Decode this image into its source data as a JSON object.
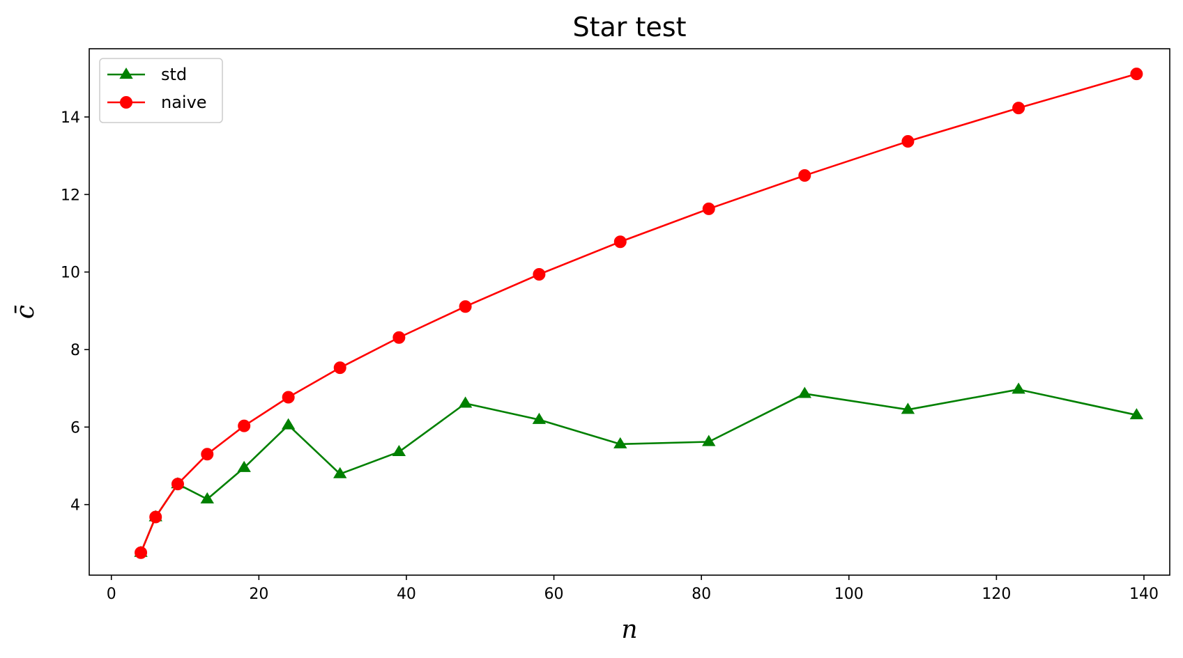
{
  "chart_data": {
    "type": "line",
    "title": "Star test",
    "xlabel": "n",
    "ylabel": "c̄",
    "xlim": [
      -3,
      143.5
    ],
    "ylim": [
      2.18,
      15.76
    ],
    "xticks": [
      0,
      20,
      40,
      60,
      80,
      100,
      120,
      140
    ],
    "yticks": [
      4,
      6,
      8,
      10,
      12,
      14
    ],
    "grid": false,
    "legend_position": "top-left",
    "series": [
      {
        "name": "std",
        "color": "#008000",
        "marker": "triangle",
        "x": [
          4,
          6,
          9,
          13,
          18,
          24,
          31,
          39,
          48,
          58,
          69,
          81,
          94,
          108,
          123,
          139
        ],
        "y": [
          2.76,
          3.68,
          4.53,
          4.14,
          4.95,
          6.05,
          4.79,
          5.36,
          6.61,
          6.19,
          5.56,
          5.62,
          6.86,
          6.45,
          6.97,
          6.31
        ]
      },
      {
        "name": "naive",
        "color": "#ff0000",
        "marker": "circle",
        "x": [
          4,
          6,
          9,
          13,
          18,
          24,
          31,
          39,
          48,
          58,
          69,
          81,
          94,
          108,
          123,
          139
        ],
        "y": [
          2.76,
          3.68,
          4.53,
          5.3,
          6.03,
          6.77,
          7.53,
          8.31,
          9.11,
          9.94,
          10.78,
          11.63,
          12.49,
          13.37,
          14.23,
          15.11
        ]
      }
    ]
  }
}
